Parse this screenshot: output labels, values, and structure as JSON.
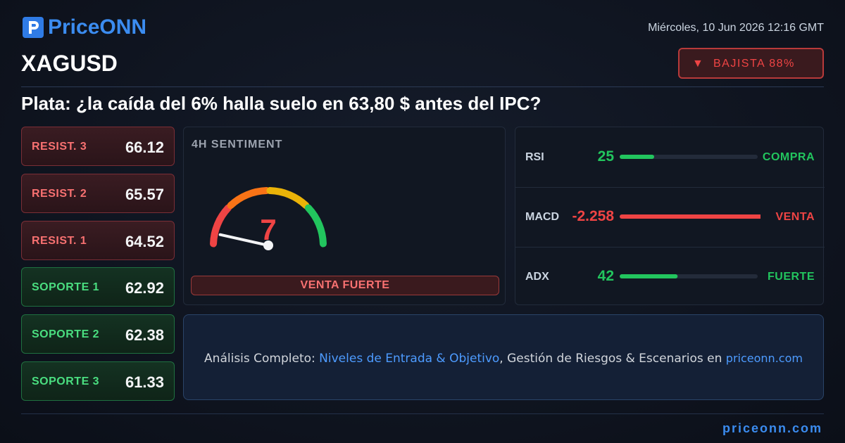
{
  "header": {
    "brand": "PriceONN",
    "date": "Miércoles, 10 Jun 2026 12:16 GMT",
    "symbol": "XAGUSD",
    "bias": {
      "icon": "▼",
      "label": "BAJISTA 88%"
    }
  },
  "headline": "Plata: ¿la caída del 6% halla suelo en 63,80 $ antes del IPC?",
  "resistances": [
    {
      "label": "RESIST. 3",
      "value": 66.12
    },
    {
      "label": "RESIST. 2",
      "value": 65.57
    },
    {
      "label": "RESIST. 1",
      "value": 64.52
    }
  ],
  "supports": [
    {
      "label": "SOPORTE 1",
      "value": 62.92
    },
    {
      "label": "SOPORTE 2",
      "value": 62.38
    },
    {
      "label": "SOPORTE 3",
      "value": 61.33
    }
  ],
  "sentiment": {
    "title": "4H SENTIMENT",
    "value": 7,
    "range": [
      0,
      100
    ],
    "signal": "VENTA FUERTE"
  },
  "indicators": [
    {
      "name": "RSI",
      "value": 25,
      "signal": "COMPRA",
      "color": "#22c55e",
      "range": [
        0,
        100
      ]
    },
    {
      "name": "MACD",
      "value": -2.258,
      "signal": "VENTA",
      "color": "#ef4444"
    },
    {
      "name": "ADX",
      "value": 42,
      "signal": "FUERTE",
      "color": "#22c55e",
      "range": [
        0,
        100
      ]
    }
  ],
  "cta": {
    "lead": "Análisis Completo:",
    "highlight": "Niveles de Entrada & Objetivo",
    "rest": ", Gestión de Riesgos & Escenarios en",
    "link": "priceonn.com"
  },
  "footer": {
    "url": "priceonn.com"
  }
}
